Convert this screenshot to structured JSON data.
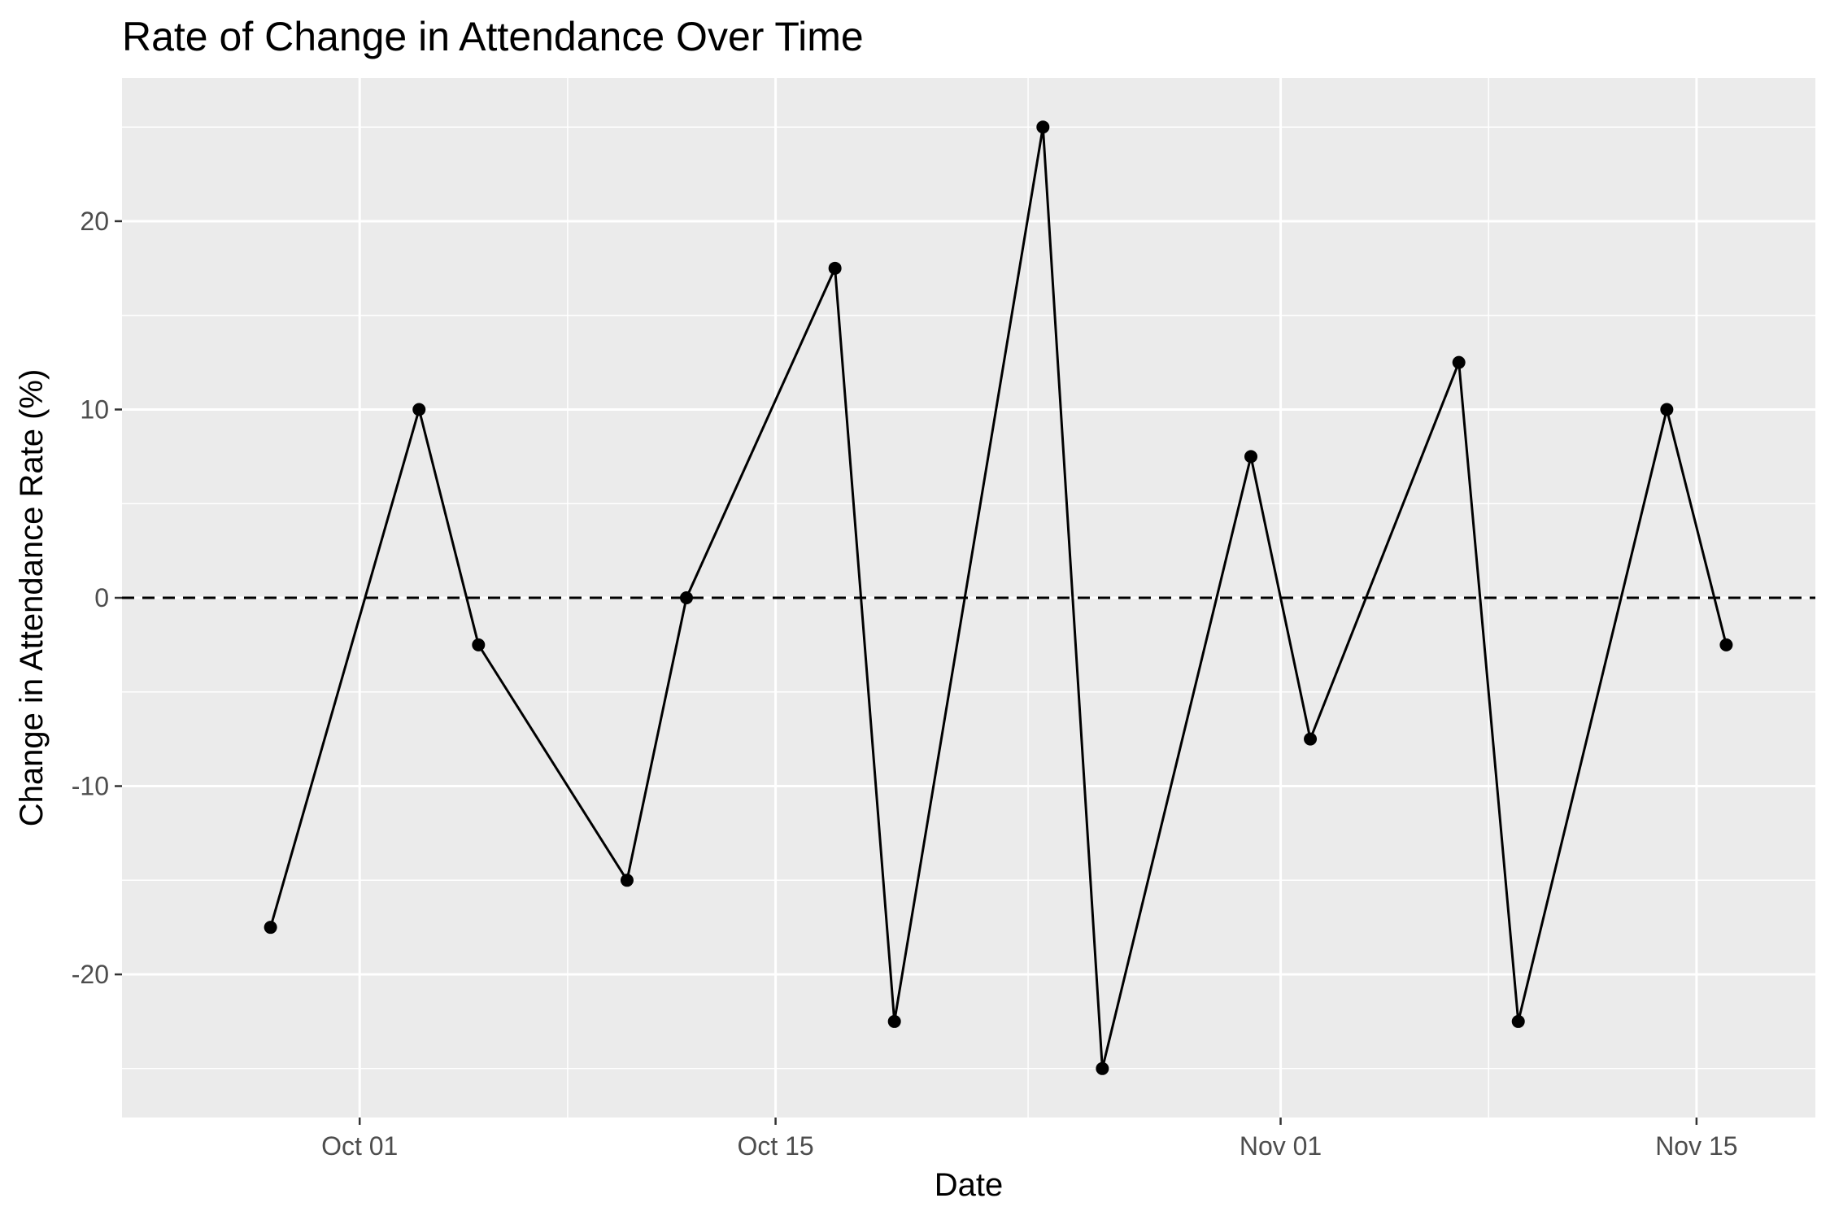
{
  "chart_data": {
    "type": "line",
    "title": "Rate of Change in Attendance Over Time",
    "xlabel": "Date",
    "ylabel": "Change in Attendance Rate (%)",
    "x_ticks": [
      "Oct 01",
      "Oct 15",
      "Nov 01",
      "Nov 15"
    ],
    "x_tick_dates": [
      "2023-10-01",
      "2023-10-15",
      "2023-11-01",
      "2023-11-15"
    ],
    "y_ticks": [
      "-20",
      "-10",
      "0",
      "10",
      "20"
    ],
    "y_tick_values": [
      -20,
      -10,
      0,
      10,
      20
    ],
    "xlim": [
      "2023-09-23",
      "2023-11-19"
    ],
    "ylim": [
      -27.6,
      27.6
    ],
    "grid": true,
    "reference_line": {
      "y": 0,
      "style": "dashed"
    },
    "series": [
      {
        "points": [
          {
            "x": "2023-09-28",
            "y": -17.5
          },
          {
            "x": "2023-10-03",
            "y": 10
          },
          {
            "x": "2023-10-05",
            "y": -2.5
          },
          {
            "x": "2023-10-10",
            "y": -15
          },
          {
            "x": "2023-10-12",
            "y": 0
          },
          {
            "x": "2023-10-17",
            "y": 17.5
          },
          {
            "x": "2023-10-19",
            "y": -22.5
          },
          {
            "x": "2023-10-24",
            "y": 25
          },
          {
            "x": "2023-10-26",
            "y": -25
          },
          {
            "x": "2023-10-31",
            "y": 7.5
          },
          {
            "x": "2023-11-02",
            "y": -7.5
          },
          {
            "x": "2023-11-07",
            "y": 12.5
          },
          {
            "x": "2023-11-09",
            "y": -22.5
          },
          {
            "x": "2023-11-14",
            "y": 10
          },
          {
            "x": "2023-11-16",
            "y": -2.5
          }
        ]
      }
    ],
    "colors": {
      "panel": "#EBEBEB",
      "grid": "#FFFFFF",
      "line": "#000000",
      "point": "#000000",
      "tick_text": "#4D4D4D"
    }
  }
}
